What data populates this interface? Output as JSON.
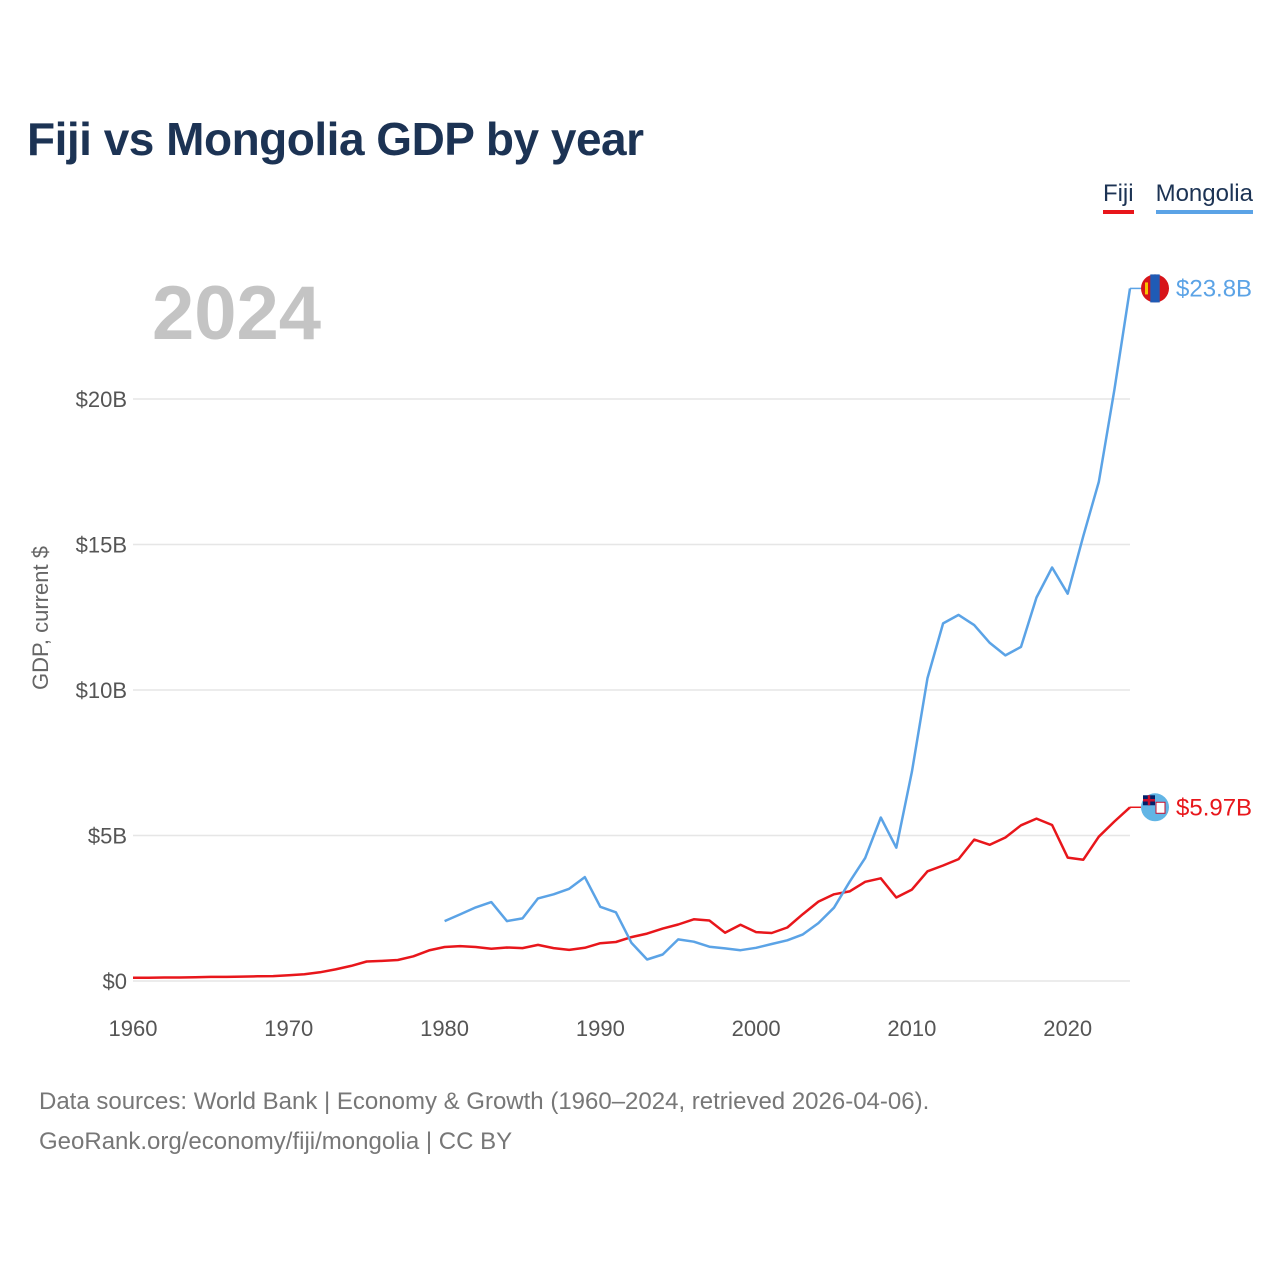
{
  "title": "Fiji vs Mongolia GDP by year",
  "legend": {
    "fiji": "Fiji",
    "mongolia": "Mongolia"
  },
  "year_display": "2024",
  "source": {
    "line1": "Data sources: World Bank | Economy & Growth (1960–2024, retrieved 2026-04-06).",
    "line2": "GeoRank.org/economy/fiji/mongolia | CC BY"
  },
  "colors": {
    "fiji": "#e8161b",
    "mongolia": "#5ba3e6",
    "grid": "#e6e6e6"
  },
  "chart_data": {
    "type": "line",
    "title": "Fiji vs Mongolia GDP by year",
    "xlabel": "",
    "ylabel": "GDP, current $",
    "xlim": [
      1960,
      2024
    ],
    "ylim": [
      0,
      23.8
    ],
    "x_ticks": [
      1960,
      1970,
      1980,
      1990,
      2000,
      2010,
      2020
    ],
    "y_ticks": [
      {
        "value": 0,
        "label": "$0"
      },
      {
        "value": 5,
        "label": "$5B"
      },
      {
        "value": 10,
        "label": "$10B"
      },
      {
        "value": 15,
        "label": "$15B"
      },
      {
        "value": 20,
        "label": "$20B"
      }
    ],
    "series": [
      {
        "name": "Fiji",
        "color": "#e8161b",
        "end_label": "$5.97B",
        "x": [
          1960,
          1961,
          1962,
          1963,
          1964,
          1965,
          1966,
          1967,
          1968,
          1969,
          1970,
          1971,
          1972,
          1973,
          1974,
          1975,
          1976,
          1977,
          1978,
          1979,
          1980,
          1981,
          1982,
          1983,
          1984,
          1985,
          1986,
          1987,
          1988,
          1989,
          1990,
          1991,
          1992,
          1993,
          1994,
          1995,
          1996,
          1997,
          1998,
          1999,
          2000,
          2001,
          2002,
          2003,
          2004,
          2005,
          2006,
          2007,
          2008,
          2009,
          2010,
          2011,
          2012,
          2013,
          2014,
          2015,
          2016,
          2017,
          2018,
          2019,
          2020,
          2021,
          2022,
          2023,
          2024
        ],
        "values": [
          0.11,
          0.11,
          0.12,
          0.12,
          0.13,
          0.14,
          0.14,
          0.15,
          0.16,
          0.17,
          0.2,
          0.23,
          0.3,
          0.4,
          0.52,
          0.67,
          0.69,
          0.72,
          0.85,
          1.05,
          1.17,
          1.2,
          1.17,
          1.11,
          1.15,
          1.13,
          1.24,
          1.13,
          1.07,
          1.14,
          1.3,
          1.34,
          1.51,
          1.63,
          1.8,
          1.94,
          2.12,
          2.08,
          1.66,
          1.93,
          1.68,
          1.65,
          1.84,
          2.3,
          2.73,
          2.98,
          3.08,
          3.41,
          3.53,
          2.87,
          3.14,
          3.77,
          3.97,
          4.19,
          4.86,
          4.68,
          4.93,
          5.35,
          5.58,
          5.36,
          4.24,
          4.17,
          4.96,
          5.48,
          5.97
        ]
      },
      {
        "name": "Mongolia",
        "color": "#5ba3e6",
        "end_label": "$23.8B",
        "x": [
          1980,
          1981,
          1982,
          1983,
          1984,
          1985,
          1986,
          1987,
          1988,
          1989,
          1990,
          1991,
          1992,
          1993,
          1994,
          1995,
          1996,
          1997,
          1998,
          1999,
          2000,
          2001,
          2002,
          2003,
          2004,
          2005,
          2006,
          2007,
          2008,
          2009,
          2010,
          2011,
          2012,
          2013,
          2014,
          2015,
          2016,
          2017,
          2018,
          2019,
          2020,
          2021,
          2022,
          2023,
          2024
        ],
        "values": [
          2.06,
          2.29,
          2.53,
          2.71,
          2.06,
          2.15,
          2.84,
          2.98,
          3.17,
          3.57,
          2.55,
          2.36,
          1.31,
          0.74,
          0.91,
          1.43,
          1.35,
          1.18,
          1.12,
          1.06,
          1.14,
          1.27,
          1.4,
          1.6,
          1.99,
          2.52,
          3.41,
          4.23,
          5.62,
          4.58,
          7.19,
          10.41,
          12.29,
          12.58,
          12.23,
          11.62,
          11.19,
          11.48,
          13.18,
          14.21,
          13.31,
          15.29,
          17.15,
          20.32,
          23.8
        ]
      }
    ]
  }
}
